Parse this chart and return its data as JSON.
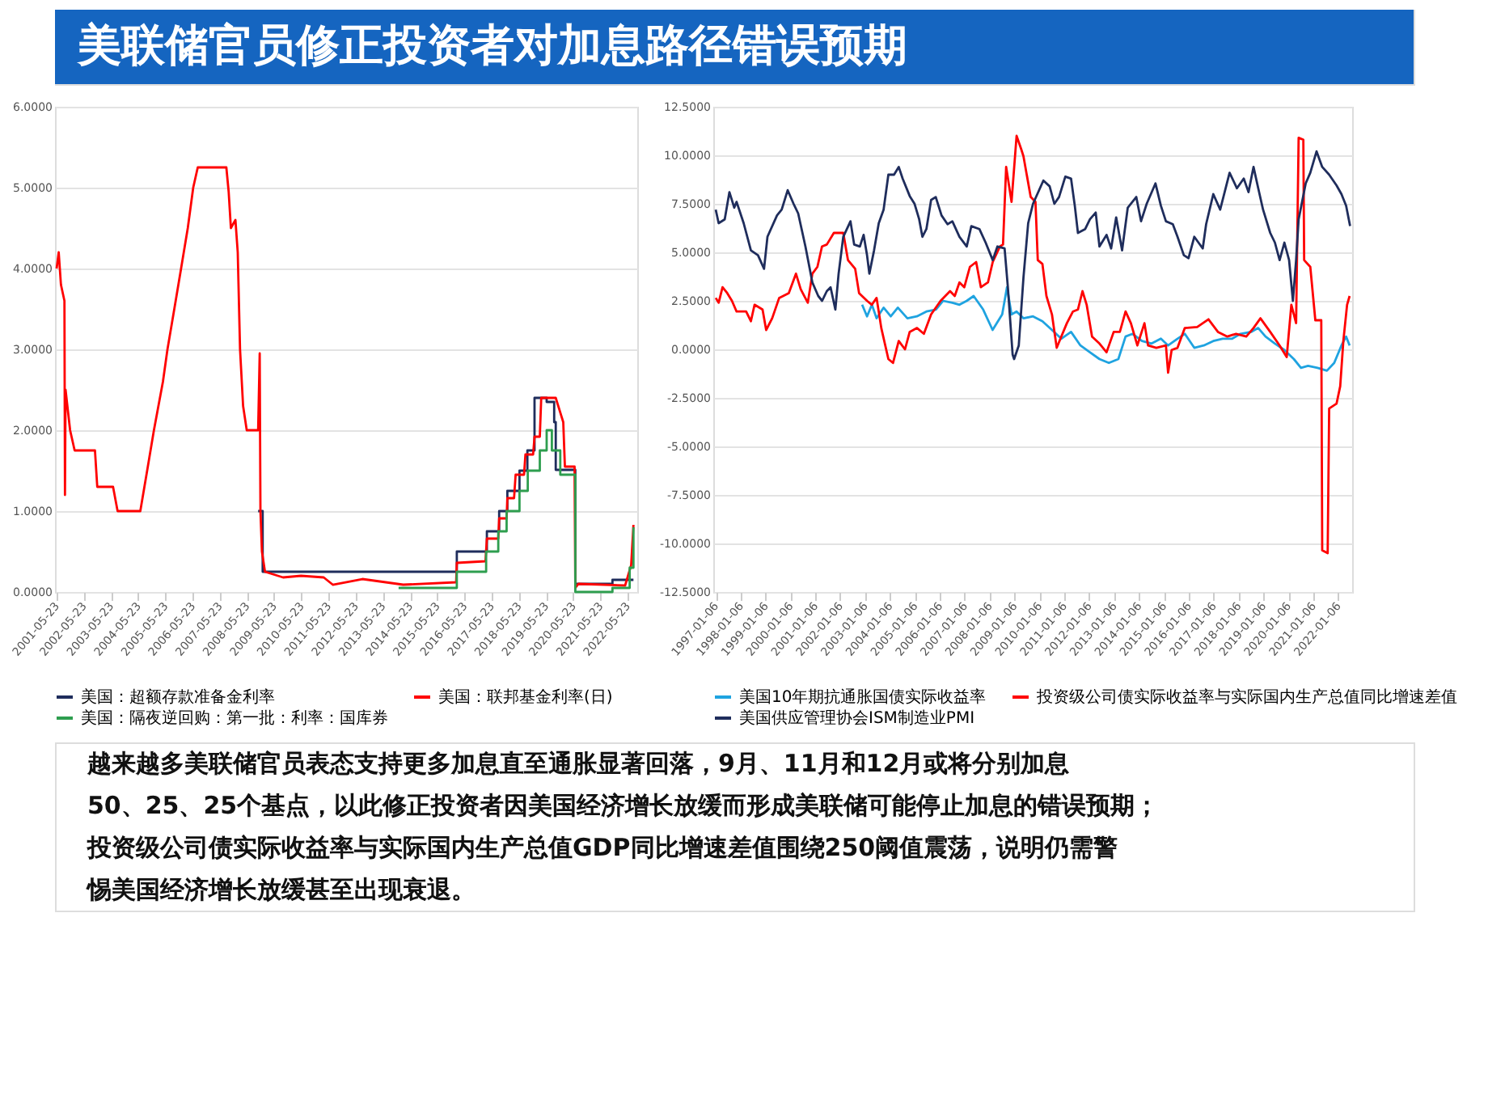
{
  "chart_data": [
    {
      "type": "line",
      "title": "美联储官员修正投资者对加息路径错误预期",
      "annotations": [
        "越来越多美联储官员表态支持更多加息直至通胀显著回落，9月、11月和12月或将分别加息",
        "50、25、25个基点，以此修正投资者因美国经济增长放缓而形成美联储可能停止加息的错误预期；",
        "投资级公司债实际收益率与实际国内生产总值GDP同比增速差值围绕250阈值震荡，说明仍需警",
        "惕美国经济增长放缓甚至出现衰退。"
      ],
      "xlim": [
        "2001-05-01",
        "2022-09-30"
      ],
      "xticks": [
        "2001-05-23",
        "2002-05-23",
        "2003-05-23",
        "2004-05-23",
        "2005-05-23",
        "2006-05-23",
        "2007-05-23",
        "2008-05-23",
        "2009-05-23",
        "2010-05-23",
        "2011-05-23",
        "2012-05-23",
        "2013-05-23",
        "2014-05-23",
        "2015-05-23",
        "2016-05-23",
        "2017-05-23",
        "2018-05-23",
        "2019-05-23",
        "2020-05-23",
        "2021-05-23",
        "2022-05-23"
      ],
      "ylim": [
        0,
        6
      ],
      "yticks": [
        {
          "value": 0,
          "label": "0.0000"
        },
        {
          "value": 1,
          "label": "1.0000"
        },
        {
          "value": 2,
          "label": "2.0000"
        },
        {
          "value": 3,
          "label": "3.0000"
        },
        {
          "value": 4,
          "label": "4.0000"
        },
        {
          "value": 5,
          "label": "5.0000"
        },
        {
          "value": 6,
          "label": "6.0000"
        }
      ],
      "grid": "y",
      "legend": "bottom",
      "series": [
        {
          "name": "美国：超额存款准备金利率",
          "color": "#1f2d5c",
          "type": "step",
          "x": [
            "2008-10-20",
            "2008-12-20",
            "2016-02-10",
            "2017-03-20",
            "2017-09-01",
            "2017-12-20",
            "2018-06-01",
            "2018-09-15",
            "2018-12-20",
            "2019-06-01",
            "2019-09-10",
            "2019-10-01",
            "2020-06-20",
            "2021-11-01",
            "2022-08-10"
          ],
          "values": [
            1.0,
            0.25,
            0.5,
            0.75,
            1.0,
            1.25,
            1.5,
            1.75,
            2.4,
            2.35,
            2.1,
            1.51,
            0.1,
            0.15,
            0.15
          ]
        },
        {
          "name": "美国：联邦基金利率(日)",
          "color": "#ff0000",
          "type": "line",
          "x": [
            "2001-05-23",
            "2001-06-20",
            "2001-07-20",
            "2001-09-05",
            "2001-09-12",
            "2001-09-20",
            "2001-11-20",
            "2002-01-20",
            "2002-10-20",
            "2002-11-20",
            "2003-06-20",
            "2003-08-20",
            "2004-06-20",
            "2004-09-20",
            "2004-12-20",
            "2005-04-20",
            "2005-06-20",
            "2005-09-20",
            "2005-12-20",
            "2006-03-20",
            "2006-06-01",
            "2006-08-01",
            "2007-08-20",
            "2007-09-20",
            "2007-10-20",
            "2007-12-20",
            "2008-01-20",
            "2008-02-20",
            "2008-04-01",
            "2008-05-20",
            "2008-10-20",
            "2008-11-10",
            "2008-11-20",
            "2008-12-10",
            "2009-01-20",
            "2009-09-20",
            "2010-05-20",
            "2011-03-20",
            "2011-07-20",
            "2012-08-20",
            "2014-02-20",
            "2016-02-01",
            "2016-02-10",
            "2017-03-01",
            "2017-03-20",
            "2017-08-20",
            "2017-09-01",
            "2017-12-10",
            "2017-12-20",
            "2018-03-20",
            "2018-04-10",
            "2018-08-01",
            "2018-08-20",
            "2018-12-01",
            "2018-12-20",
            "2019-03-01",
            "2019-03-20",
            "2019-10-01",
            "2020-01-10",
            "2020-02-01",
            "2020-06-10",
            "2020-06-20",
            "2020-08-01",
            "2022-04-20",
            "2022-07-10",
            "2022-08-10"
          ],
          "values": [
            4.0,
            4.2,
            3.8,
            3.6,
            1.2,
            2.5,
            2.0,
            1.75,
            1.75,
            1.3,
            1.3,
            1.0,
            1.0,
            1.5,
            2.0,
            2.6,
            3.0,
            3.5,
            4.0,
            4.5,
            5.0,
            5.25,
            5.25,
            4.95,
            4.5,
            4.6,
            4.2,
            3.0,
            2.3,
            2.0,
            2.0,
            2.95,
            1.0,
            0.5,
            0.25,
            0.18,
            0.2,
            0.18,
            0.09,
            0.16,
            0.09,
            0.12,
            0.36,
            0.38,
            0.66,
            0.66,
            0.91,
            0.91,
            1.16,
            1.16,
            1.45,
            1.45,
            1.7,
            1.7,
            1.92,
            1.92,
            2.4,
            2.4,
            2.1,
            1.55,
            1.55,
            0.05,
            0.1,
            0.08,
            0.33,
            0.83
          ]
        },
        {
          "name": "美国：隔夜逆回购：第一批：利率：国库券",
          "color": "#2e9e4f",
          "type": "step",
          "x": [
            "2013-12-20",
            "2016-02-10",
            "2017-03-10",
            "2017-08-20",
            "2017-12-10",
            "2018-06-01",
            "2018-09-20",
            "2019-03-01",
            "2019-06-01",
            "2019-08-10",
            "2019-12-01",
            "2020-06-20",
            "2021-11-01",
            "2022-06-20",
            "2022-08-10"
          ],
          "values": [
            0.05,
            0.25,
            0.5,
            0.75,
            1.0,
            1.25,
            1.5,
            1.75,
            2.0,
            1.75,
            1.45,
            0.0,
            0.05,
            0.3,
            0.8
          ]
        }
      ]
    },
    {
      "type": "line",
      "xlim": [
        "1996-12-01",
        "2022-07-31"
      ],
      "xticks": [
        "1997-01-06",
        "1998-01-06",
        "1999-01-06",
        "2000-01-06",
        "2001-01-06",
        "2002-01-06",
        "2003-01-06",
        "2004-01-06",
        "2005-01-06",
        "2006-01-06",
        "2007-01-06",
        "2008-01-06",
        "2009-01-06",
        "2010-01-06",
        "2011-01-06",
        "2012-01-06",
        "2013-01-06",
        "2014-01-06",
        "2015-01-06",
        "2016-01-06",
        "2017-01-06",
        "2018-01-06",
        "2019-01-06",
        "2020-01-06",
        "2021-01-06",
        "2022-01-06"
      ],
      "ylim": [
        -12.5,
        12.5
      ],
      "yticks": [
        {
          "value": -12.5,
          "label": "-12.5000"
        },
        {
          "value": -10,
          "label": "-10.0000"
        },
        {
          "value": -7.5,
          "label": "-7.5000"
        },
        {
          "value": -5,
          "label": "-5.0000"
        },
        {
          "value": -2.5,
          "label": "-2.5000"
        },
        {
          "value": 0,
          "label": "0.0000"
        },
        {
          "value": 2.5,
          "label": "2.5000"
        },
        {
          "value": 5,
          "label": "5.0000"
        },
        {
          "value": 7.5,
          "label": "7.5000"
        },
        {
          "value": 10,
          "label": "10.0000"
        },
        {
          "value": 12.5,
          "label": "12.5000"
        }
      ],
      "grid": "y",
      "legend": "bottom",
      "series": [
        {
          "name": "美国10年期抗通胀国债实际收益率",
          "color": "#1fa3e0",
          "x": [
            "2002-11-24",
            "2003-02-04",
            "2003-04-16",
            "2003-06-24",
            "2003-10-05",
            "2004-01-18",
            "2004-05-01",
            "2004-09-18",
            "2005-02-04",
            "2005-06-24",
            "2005-11-10",
            "2006-02-22",
            "2006-07-10",
            "2006-10-22",
            "2007-02-06",
            "2007-05-18",
            "2007-10-05",
            "2008-02-20",
            "2008-07-10",
            "2008-09-18",
            "2008-11-24",
            "2009-02-06",
            "2009-05-18",
            "2009-10-05",
            "2010-02-20",
            "2010-07-10",
            "2010-11-24",
            "2011-04-16",
            "2011-09-01",
            "2012-01-18",
            "2012-06-06",
            "2012-10-22",
            "2013-03-10",
            "2013-06-24",
            "2013-10-05",
            "2014-02-20",
            "2014-07-10",
            "2014-11-24",
            "2015-03-10",
            "2015-07-26",
            "2015-11-10",
            "2016-03-28",
            "2016-08-14",
            "2017-01-01",
            "2017-05-18",
            "2017-10-05",
            "2018-02-04",
            "2018-07-10",
            "2018-10-22",
            "2019-02-06",
            "2019-06-24",
            "2019-11-10",
            "2020-03-28",
            "2020-07-10",
            "2020-10-22",
            "2021-03-10",
            "2021-07-26",
            "2021-11-10",
            "2022-02-24",
            "2022-05-04",
            "2022-06-24"
          ],
          "values": [
            2.3,
            1.7,
            2.3,
            1.6,
            2.15,
            1.7,
            2.15,
            1.6,
            1.7,
            1.95,
            2.05,
            2.5,
            2.4,
            2.3,
            2.5,
            2.75,
            2.05,
            1.0,
            1.8,
            3.2,
            1.8,
            1.95,
            1.6,
            1.7,
            1.45,
            1.0,
            0.55,
            0.9,
            0.2,
            -0.15,
            -0.5,
            -0.7,
            -0.5,
            0.66,
            0.8,
            0.43,
            0.3,
            0.55,
            0.2,
            0.55,
            0.8,
            0.08,
            0.2,
            0.43,
            0.55,
            0.55,
            0.8,
            0.9,
            1.1,
            0.66,
            0.3,
            -0.03,
            -0.5,
            -0.95,
            -0.85,
            -0.95,
            -1.1,
            -0.7,
            0.2,
            0.66,
            0.2
          ]
        },
        {
          "name": "投资级公司债实际收益率与实际国内生产总值同比增速差值",
          "color": "#ff0000",
          "x": [
            "1997-01-06",
            "1997-02-18",
            "1997-04-16",
            "1997-06-24",
            "1997-09-01",
            "1997-11-08",
            "1998-03-28",
            "1998-06-06",
            "1998-07-30",
            "1998-11-24",
            "1999-01-16",
            "1999-04-14",
            "1999-07-26",
            "1999-12-14",
            "2000-03-28",
            "2000-06-06",
            "2000-09-18",
            "2000-11-24",
            "2001-02-06",
            "2001-04-14",
            "2001-06-24",
            "2001-10-05",
            "2002-02-20",
            "2002-04-30",
            "2002-08-14",
            "2002-10-10",
            "2003-02-04",
            "2003-04-16",
            "2003-06-24",
            "2003-09-01",
            "2003-12-14",
            "2004-02-20",
            "2004-05-14",
            "2004-08-14",
            "2004-10-22",
            "2005-02-06",
            "2005-05-18",
            "2005-09-01",
            "2006-01-18",
            "2006-06-06",
            "2006-08-14",
            "2006-10-22",
            "2007-01-01",
            "2007-03-24",
            "2007-06-24",
            "2007-09-01",
            "2007-12-14",
            "2008-02-22",
            "2008-06-06",
            "2008-07-22",
            "2008-09-06",
            "2008-11-24",
            "2009-02-06",
            "2009-04-16",
            "2009-05-18",
            "2009-09-01",
            "2009-11-10",
            "2009-12-14",
            "2010-02-20",
            "2010-04-20",
            "2010-07-10",
            "2010-09-18",
            "2010-11-24",
            "2011-02-14",
            "2011-05-14",
            "2011-07-26",
            "2011-10-01",
            "2011-12-01",
            "2012-02-18",
            "2012-06-06",
            "2012-09-18",
            "2013-01-01",
            "2013-04-01",
            "2013-06-24",
            "2013-09-10",
            "2013-12-14",
            "2014-03-28",
            "2014-05-20",
            "2014-09-18",
            "2015-02-06",
            "2015-03-10",
            "2015-05-01",
            "2015-07-26",
            "2015-11-10",
            "2016-05-10",
            "2016-10-22",
            "2017-03-10",
            "2017-07-26",
            "2017-12-01",
            "2018-04-30",
            "2018-08-14",
            "2018-11-24",
            "2019-04-16",
            "2019-09-01",
            "2019-12-14",
            "2020-02-20",
            "2020-04-30",
            "2020-06-06",
            "2020-08-14",
            "2020-08-26",
            "2020-11-24",
            "2021-02-06",
            "2021-05-04",
            "2021-05-18",
            "2021-08-06",
            "2021-08-28",
            "2021-12-14",
            "2022-02-06",
            "2022-03-24",
            "2022-05-18",
            "2022-06-24"
          ],
          "values": [
            2.65,
            2.4,
            3.2,
            2.9,
            2.5,
            1.95,
            1.95,
            1.45,
            2.3,
            2.05,
            1.0,
            1.6,
            2.65,
            2.9,
            3.9,
            3.1,
            2.4,
            3.9,
            4.25,
            5.3,
            5.4,
            6.0,
            6.0,
            4.6,
            4.15,
            2.9,
            2.5,
            2.3,
            2.65,
            1.1,
            -0.5,
            -0.7,
            0.43,
            0.0,
            0.9,
            1.1,
            0.8,
            1.8,
            2.5,
            3.0,
            2.75,
            3.45,
            3.2,
            4.25,
            4.5,
            3.2,
            3.45,
            4.5,
            5.3,
            5.4,
            9.4,
            7.6,
            11.0,
            10.3,
            9.95,
            7.85,
            7.6,
            4.6,
            4.4,
            2.75,
            1.8,
            0.08,
            0.66,
            1.35,
            1.95,
            2.05,
            3.0,
            2.3,
            0.66,
            0.3,
            -0.15,
            0.9,
            0.9,
            1.95,
            1.35,
            0.2,
            1.35,
            0.2,
            0.08,
            0.2,
            -1.2,
            -0.03,
            0.08,
            1.1,
            1.15,
            1.55,
            0.9,
            0.66,
            0.8,
            0.66,
            1.1,
            1.6,
            0.9,
            0.2,
            -0.4,
            2.3,
            1.35,
            10.9,
            10.8,
            4.6,
            4.25,
            1.5,
            1.5,
            -10.35,
            -10.5,
            -3.05,
            -2.8,
            -1.9,
            0.43,
            2.3,
            2.75
          ]
        },
        {
          "name": "美国供应管理协会ISM制造业PMI",
          "color": "#1f2d5c",
          "x": [
            "1997-01-06",
            "1997-02-18",
            "1997-05-18",
            "1997-07-26",
            "1997-10-05",
            "1997-11-08",
            "1998-02-20",
            "1998-06-06",
            "1998-09-18",
            "1998-12-16",
            "1999-02-04",
            "1999-06-24",
            "1999-09-01",
            "1999-11-28",
            "2000-02-22",
            "2000-04-30",
            "2000-08-14",
            "2000-11-24",
            "2001-02-18",
            "2001-04-16",
            "2001-06-24",
            "2001-08-18",
            "2001-10-27",
            "2001-12-14",
            "2002-02-20",
            "2002-06-06",
            "2002-07-30",
            "2002-10-22",
            "2002-12-16",
            "2003-02-04",
            "2003-03-10",
            "2003-05-18",
            "2003-07-26",
            "2003-10-05",
            "2003-12-14",
            "2004-03-06",
            "2004-05-14",
            "2004-07-10",
            "2004-10-22",
            "2005-01-01",
            "2005-03-10",
            "2005-04-26",
            "2005-06-24",
            "2005-09-01",
            "2005-11-08",
            "2006-02-01",
            "2006-04-30",
            "2006-07-10",
            "2006-10-22",
            "2007-02-06",
            "2007-04-14",
            "2007-08-10",
            "2007-11-10",
            "2008-02-22",
            "2008-05-01",
            "2008-08-14",
            "2008-10-01",
            "2008-12-10",
            "2009-01-01",
            "2009-03-10",
            "2009-05-18",
            "2009-07-26",
            "2009-10-05",
            "2010-03-06",
            "2010-06-06",
            "2010-08-14",
            "2010-10-22",
            "2011-01-22",
            "2011-04-16",
            "2011-06-10",
            "2011-07-26",
            "2011-11-10",
            "2012-01-18",
            "2012-04-12",
            "2012-06-06",
            "2012-09-18",
            "2012-11-24",
            "2013-02-06",
            "2013-05-04",
            "2013-07-26",
            "2013-11-28",
            "2014-02-06",
            "2014-04-30",
            "2014-09-06",
            "2014-11-24",
            "2015-02-06",
            "2015-05-18",
            "2015-07-26",
            "2015-10-27",
            "2016-01-04",
            "2016-03-28",
            "2016-07-30",
            "2016-09-18",
            "2017-01-01",
            "2017-04-12",
            "2017-08-28",
            "2017-12-14",
            "2018-03-24",
            "2018-06-02",
            "2018-08-14",
            "2018-10-22",
            "2019-01-01",
            "2019-04-16",
            "2019-06-24",
            "2019-09-01",
            "2019-11-10",
            "2020-01-18",
            "2020-03-14",
            "2020-04-30",
            "2020-06-06",
            "2020-09-18",
            "2020-11-24",
            "2021-02-24",
            "2021-05-18",
            "2021-08-28",
            "2021-12-14",
            "2022-02-24",
            "2022-05-04",
            "2022-07-01"
          ],
          "values": [
            7.2,
            6.5,
            6.7,
            8.1,
            7.3,
            7.6,
            6.5,
            5.1,
            4.85,
            4.15,
            5.8,
            6.9,
            7.2,
            8.2,
            7.5,
            7.0,
            5.3,
            3.45,
            2.75,
            2.5,
            3.0,
            3.2,
            2.05,
            3.9,
            5.8,
            6.6,
            5.4,
            5.3,
            5.9,
            4.85,
            3.9,
            5.1,
            6.5,
            7.2,
            9.0,
            9.0,
            9.4,
            8.8,
            7.9,
            7.5,
            6.7,
            5.8,
            6.2,
            7.7,
            7.85,
            6.9,
            6.45,
            6.6,
            5.8,
            5.3,
            6.35,
            6.2,
            5.5,
            4.6,
            5.3,
            5.2,
            3.2,
            -0.27,
            -0.5,
            0.2,
            3.7,
            6.5,
            7.5,
            8.7,
            8.4,
            7.5,
            7.85,
            8.9,
            8.8,
            7.4,
            6.0,
            6.2,
            6.7,
            7.05,
            5.3,
            5.9,
            5.2,
            6.8,
            5.1,
            7.3,
            7.85,
            6.6,
            7.5,
            8.55,
            7.4,
            6.6,
            6.45,
            5.8,
            4.85,
            4.7,
            5.8,
            5.2,
            6.45,
            8.0,
            7.2,
            9.1,
            8.3,
            8.8,
            8.1,
            9.4,
            8.3,
            7.2,
            6.0,
            5.5,
            4.6,
            5.5,
            4.6,
            2.5,
            4.6,
            6.7,
            8.55,
            9.1,
            10.2,
            9.4,
            9.0,
            8.45,
            8.0,
            7.4,
            6.35
          ]
        }
      ]
    }
  ]
}
